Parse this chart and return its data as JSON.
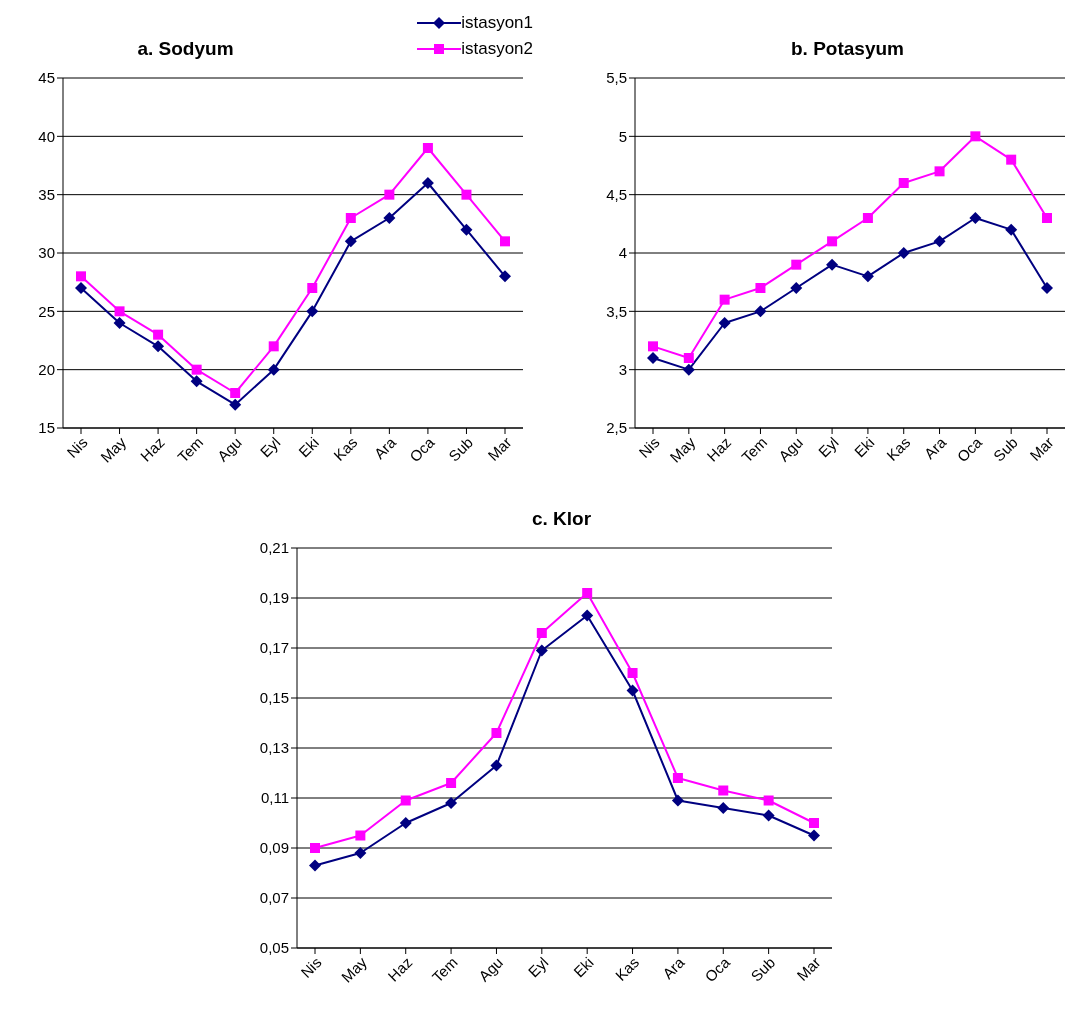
{
  "chart_data": [
    {
      "type": "line",
      "title": "a. Sodyum",
      "categories": [
        "Nis",
        "May",
        "Haz",
        "Tem",
        "Agu",
        "Eyl",
        "Eki",
        "Kas",
        "Ara",
        "Oca",
        "Sub",
        "Mar"
      ],
      "series": [
        {
          "name": "istasyon1",
          "color": "#000080",
          "marker": "diamond",
          "values": [
            27,
            24,
            22,
            19,
            17,
            20,
            25,
            31,
            33,
            36,
            32,
            28
          ]
        },
        {
          "name": "istasyon2",
          "color": "#ff00ff",
          "marker": "square",
          "values": [
            28,
            25,
            23,
            20,
            18,
            22,
            27,
            33,
            35,
            39,
            35,
            31
          ]
        }
      ],
      "ylim": [
        15,
        45
      ],
      "yticks": [
        15,
        20,
        25,
        30,
        35,
        40,
        45
      ],
      "grid": "y",
      "legend": "top right"
    },
    {
      "type": "line",
      "title": "b. Potasyum",
      "categories": [
        "Nis",
        "May",
        "Haz",
        "Tem",
        "Agu",
        "Eyl",
        "Eki",
        "Kas",
        "Ara",
        "Oca",
        "Sub",
        "Mar"
      ],
      "series": [
        {
          "color": "#000080",
          "marker": "diamond",
          "values": [
            3.1,
            3.0,
            3.4,
            3.5,
            3.7,
            3.9,
            3.8,
            4.0,
            4.1,
            4.3,
            4.2,
            3.7
          ]
        },
        {
          "color": "#ff00ff",
          "marker": "square",
          "values": [
            3.2,
            3.1,
            3.6,
            3.7,
            3.9,
            4.1,
            4.3,
            4.6,
            4.7,
            5.0,
            4.8,
            4.3
          ]
        }
      ],
      "ylim": [
        2.5,
        5.5
      ],
      "yticks": [
        {
          "value": 2.5,
          "label": "2,5"
        },
        3,
        {
          "value": 3.5,
          "label": "3,5"
        },
        4,
        {
          "value": 4.5,
          "label": "4,5"
        },
        5,
        {
          "value": 5.5,
          "label": "5,5"
        }
      ],
      "grid": "y"
    },
    {
      "type": "line",
      "title": "c. Klor",
      "categories": [
        "Nis",
        "May",
        "Haz",
        "Tem",
        "Agu",
        "Eyl",
        "Eki",
        "Kas",
        "Ara",
        "Oca",
        "Sub",
        "Mar"
      ],
      "series": [
        {
          "color": "#000080",
          "marker": "diamond",
          "values": [
            0.083,
            0.088,
            0.1,
            0.108,
            0.123,
            0.169,
            0.183,
            0.153,
            0.109,
            0.106,
            0.103,
            0.095
          ]
        },
        {
          "color": "#ff00ff",
          "marker": "square",
          "values": [
            0.09,
            0.095,
            0.109,
            0.116,
            0.136,
            0.176,
            0.192,
            0.16,
            0.118,
            0.113,
            0.109,
            0.1
          ]
        }
      ],
      "ylim": [
        0.05,
        0.21
      ],
      "yticks": [
        {
          "value": 0.05,
          "label": "0,05"
        },
        {
          "value": 0.07,
          "label": "0,07"
        },
        {
          "value": 0.09,
          "label": "0,09"
        },
        {
          "value": 0.11,
          "label": "0,11"
        },
        {
          "value": 0.13,
          "label": "0,13"
        },
        {
          "value": 0.15,
          "label": "0,15"
        },
        {
          "value": 0.17,
          "label": "0,17"
        },
        {
          "value": 0.19,
          "label": "0,19"
        },
        {
          "value": 0.21,
          "label": "0,21"
        }
      ],
      "grid": "y"
    }
  ]
}
